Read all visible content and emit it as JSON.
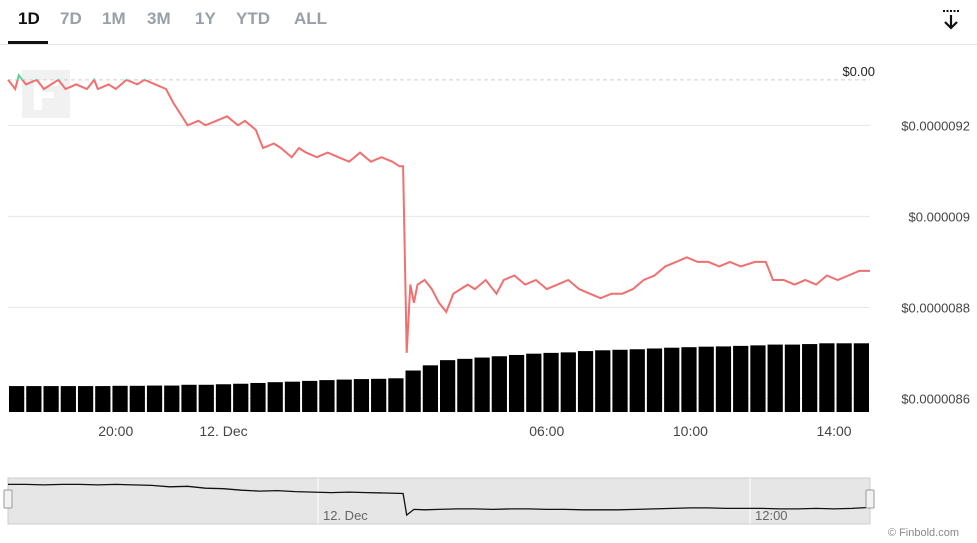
{
  "range_tabs": [
    {
      "label": "1D",
      "active": true
    },
    {
      "label": "7D",
      "active": false
    },
    {
      "label": "1M",
      "active": false
    },
    {
      "label": "3M",
      "active": false
    },
    {
      "label": "1Y",
      "active": false
    },
    {
      "label": "YTD",
      "active": false
    },
    {
      "label": "ALL",
      "active": false
    }
  ],
  "download_icon": "download-arrow-icon",
  "logo_icon": "finbold-logo-watermark",
  "credit": "© Finbold.com",
  "colors": {
    "up": "#5fd18f",
    "down": "#f07070",
    "volume": "#000000",
    "grid": "#e6e6e6",
    "navigator_bg": "#e6e6e6"
  },
  "chart_data": {
    "type": "line",
    "ylim": [
      8.57e-06,
      9.37e-06
    ],
    "yticks": [
      8.6e-06,
      8.8e-06,
      9e-06,
      9.2e-06
    ],
    "ytick_labels": [
      "$0.0000086",
      "$0.0000088",
      "$0.000009",
      "$0.0000092"
    ],
    "xlim": [
      0,
      24
    ],
    "xticks": [
      3,
      6,
      15,
      19,
      23
    ],
    "xtick_labels": [
      "20:00",
      "12. Dec",
      "06:00",
      "10:00",
      "14:00"
    ],
    "reference_line": {
      "value": 9.3e-06,
      "label": "$0.00"
    },
    "series": [
      {
        "x": [
          0,
          0.2,
          0.3,
          0.5,
          0.8,
          1.0,
          1.2,
          1.4,
          1.6,
          1.9,
          2.2,
          2.4,
          2.5,
          2.8,
          3.0,
          3.3,
          3.6,
          3.8,
          4.1,
          4.4,
          4.6,
          5.0,
          5.3,
          5.5,
          5.8,
          6.1,
          6.4,
          6.6,
          6.9,
          7.1,
          7.4,
          7.6,
          7.9,
          8.1,
          8.3,
          8.6,
          8.9,
          9.2,
          9.5,
          9.8,
          10.1,
          10.4,
          10.7,
          10.9,
          11.0,
          11.1,
          11.2,
          11.3,
          11.4,
          11.6,
          11.8,
          12.0,
          12.2,
          12.4,
          12.6,
          12.8,
          13.0,
          13.3,
          13.6,
          13.8,
          14.1,
          14.4,
          14.7,
          15.0,
          15.3,
          15.6,
          15.9,
          16.2,
          16.5,
          16.8,
          17.1,
          17.4,
          17.7,
          18.0,
          18.3,
          18.6,
          18.9,
          19.2,
          19.5,
          19.8,
          20.1,
          20.4,
          20.8,
          21.1,
          21.3,
          21.6,
          21.9,
          22.2,
          22.5,
          22.8,
          23.1,
          23.4,
          23.7,
          24.0
        ],
        "y": [
          9.3e-06,
          9.28e-06,
          9.31e-06,
          9.29e-06,
          9.3e-06,
          9.28e-06,
          9.29e-06,
          9.3e-06,
          9.28e-06,
          9.29e-06,
          9.28e-06,
          9.3e-06,
          9.28e-06,
          9.29e-06,
          9.28e-06,
          9.3e-06,
          9.29e-06,
          9.3e-06,
          9.29e-06,
          9.28e-06,
          9.25e-06,
          9.2e-06,
          9.21e-06,
          9.2e-06,
          9.21e-06,
          9.22e-06,
          9.2e-06,
          9.21e-06,
          9.19e-06,
          9.15e-06,
          9.16e-06,
          9.15e-06,
          9.13e-06,
          9.15e-06,
          9.14e-06,
          9.13e-06,
          9.14e-06,
          9.13e-06,
          9.12e-06,
          9.14e-06,
          9.12e-06,
          9.13e-06,
          9.12e-06,
          9.11e-06,
          9.11e-06,
          8.7e-06,
          8.85e-06,
          8.81e-06,
          8.85e-06,
          8.86e-06,
          8.84e-06,
          8.81e-06,
          8.79e-06,
          8.83e-06,
          8.84e-06,
          8.85e-06,
          8.84e-06,
          8.86e-06,
          8.83e-06,
          8.86e-06,
          8.87e-06,
          8.85e-06,
          8.86e-06,
          8.84e-06,
          8.85e-06,
          8.86e-06,
          8.84e-06,
          8.83e-06,
          8.82e-06,
          8.83e-06,
          8.83e-06,
          8.84e-06,
          8.86e-06,
          8.87e-06,
          8.89e-06,
          8.9e-06,
          8.91e-06,
          8.9e-06,
          8.9e-06,
          8.89e-06,
          8.9e-06,
          8.89e-06,
          8.9e-06,
          8.9e-06,
          8.86e-06,
          8.86e-06,
          8.85e-06,
          8.86e-06,
          8.85e-06,
          8.87e-06,
          8.86e-06,
          8.87e-06,
          8.88e-06,
          8.88e-06
        ]
      }
    ],
    "volume": [
      1,
      1,
      1,
      1,
      1,
      1,
      1.01,
      1.01,
      1.02,
      1.02,
      1.05,
      1.05,
      1.07,
      1.09,
      1.12,
      1.15,
      1.17,
      1.2,
      1.23,
      1.25,
      1.27,
      1.28,
      1.3,
      1.6,
      1.8,
      2.0,
      2.05,
      2.1,
      2.15,
      2.2,
      2.25,
      2.28,
      2.3,
      2.35,
      2.38,
      2.4,
      2.42,
      2.45,
      2.48,
      2.5,
      2.52,
      2.53,
      2.55,
      2.57,
      2.6,
      2.6,
      2.62,
      2.65,
      2.65,
      2.65
    ]
  },
  "navigator": {
    "labels": [
      "12. Dec",
      "12:00"
    ],
    "x": [
      0,
      0.5,
      1,
      1.5,
      2,
      2.5,
      3,
      3.5,
      4,
      4.5,
      5,
      5.5,
      6,
      6.5,
      7,
      7.5,
      8,
      8.5,
      9,
      9.5,
      10,
      10.5,
      11,
      11.1,
      11.3,
      11.6,
      12,
      12.5,
      13,
      13.5,
      14,
      14.5,
      15,
      15.5,
      16,
      16.5,
      17,
      17.5,
      18,
      18.5,
      19,
      19.5,
      20,
      20.5,
      21,
      21.5,
      22,
      22.5,
      23,
      23.5,
      24
    ],
    "y": [
      9.3e-06,
      9.3e-06,
      9.29e-06,
      9.3e-06,
      9.3e-06,
      9.29e-06,
      9.3e-06,
      9.29e-06,
      9.28e-06,
      9.25e-06,
      9.26e-06,
      9.22e-06,
      9.21e-06,
      9.18e-06,
      9.16e-06,
      9.17e-06,
      9.15e-06,
      9.14e-06,
      9.13e-06,
      9.14e-06,
      9.13e-06,
      9.12e-06,
      9.11e-06,
      8.66e-06,
      8.78e-06,
      8.77e-06,
      8.78e-06,
      8.79e-06,
      8.79e-06,
      8.78e-06,
      8.79e-06,
      8.79e-06,
      8.78e-06,
      8.78e-06,
      8.77e-06,
      8.77e-06,
      8.77e-06,
      8.78e-06,
      8.79e-06,
      8.8e-06,
      8.81e-06,
      8.81e-06,
      8.8e-06,
      8.8e-06,
      8.8e-06,
      8.79e-06,
      8.79e-06,
      8.8e-06,
      8.79e-06,
      8.8e-06,
      8.82e-06
    ]
  }
}
